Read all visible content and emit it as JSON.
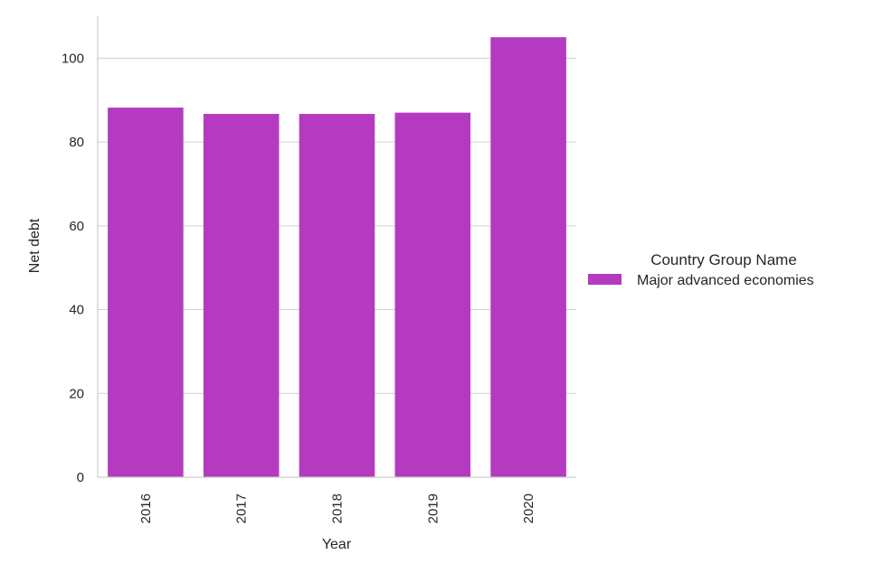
{
  "chart_data": {
    "type": "bar",
    "categories": [
      "2016",
      "2017",
      "2018",
      "2019",
      "2020"
    ],
    "series": [
      {
        "name": "Major advanced economies",
        "values": [
          88.2,
          86.7,
          86.7,
          87.0,
          105.0
        ],
        "color": "#b43bbf"
      }
    ],
    "xlabel": "Year",
    "ylabel": "Net debt",
    "ylim": [
      0,
      110
    ],
    "yticks": [
      0,
      20,
      40,
      60,
      80,
      100
    ],
    "grid": "horizontal",
    "legend": {
      "title": "Country Group Name",
      "placement": "right"
    },
    "colors": {
      "grid": "#d0d0d0",
      "axis": "#cccccc",
      "text": "#262626"
    }
  }
}
